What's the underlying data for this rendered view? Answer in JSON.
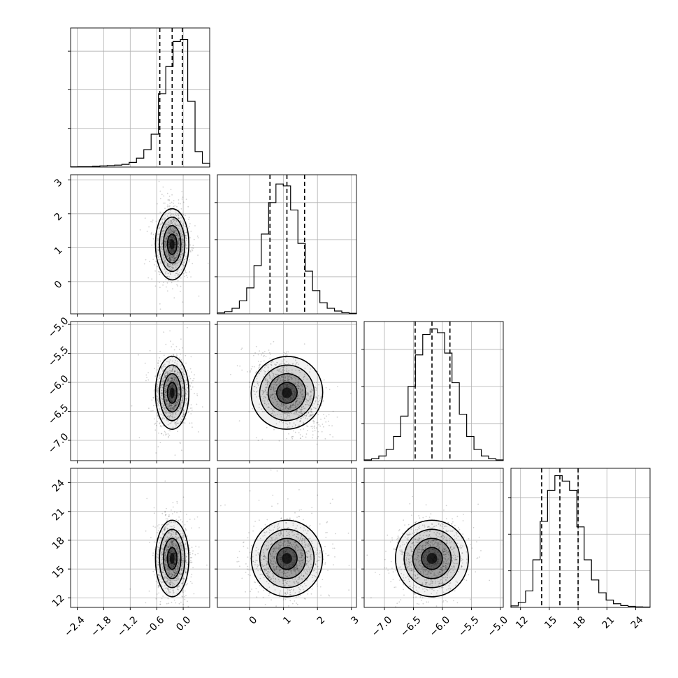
{
  "chart_data": {
    "type": "corner",
    "n_params": 4,
    "grid": true,
    "params": [
      {
        "range": [
          -2.55,
          0.6
        ],
        "ticks": [
          -2.4,
          -1.8,
          -1.2,
          -0.6,
          0.0
        ],
        "tick_labels": [
          "−2.4",
          "−1.8",
          "−1.2",
          "−0.6",
          "0.0"
        ],
        "quantiles": [
          -0.53,
          -0.25,
          -0.02
        ],
        "hist_counts": [
          1,
          2,
          2,
          4,
          6,
          8,
          10,
          14,
          24,
          46,
          90,
          170,
          380,
          520,
          650,
          660,
          340,
          80,
          20
        ],
        "hist_max": 720,
        "hist_ticks": [
          200,
          400,
          600
        ],
        "center": -0.25,
        "spread": 0.18
      },
      {
        "range": [
          -0.95,
          3.15
        ],
        "ticks": [
          0,
          1,
          2,
          3
        ],
        "tick_labels": [
          "0",
          "1",
          "2",
          "3"
        ],
        "quantiles": [
          0.6,
          1.1,
          1.62
        ],
        "hist_counts": [
          5,
          12,
          30,
          70,
          140,
          260,
          430,
          600,
          700,
          690,
          560,
          380,
          230,
          125,
          60,
          30,
          15,
          6,
          3
        ],
        "hist_max": 750,
        "hist_ticks": [
          200,
          400,
          600
        ],
        "center": 1.1,
        "spread": 0.5
      },
      {
        "range": [
          -7.35,
          -4.95
        ],
        "ticks": [
          -7.0,
          -6.5,
          -6.0,
          -5.5,
          -5.0
        ],
        "tick_labels": [
          "−7.0",
          "−6.5",
          "−6.0",
          "−5.5",
          "−5.0"
        ],
        "quantiles": [
          -6.47,
          -6.18,
          -5.87
        ],
        "hist_counts": [
          4,
          10,
          25,
          60,
          130,
          240,
          400,
          570,
          680,
          710,
          690,
          580,
          420,
          250,
          130,
          60,
          25,
          10,
          4
        ],
        "hist_max": 750,
        "hist_ticks": [
          200,
          400,
          600
        ],
        "center": -6.18,
        "spread": 0.3
      },
      {
        "range": [
          11.0,
          25.5
        ],
        "ticks": [
          12,
          15,
          18,
          21,
          24
        ],
        "tick_labels": [
          "12",
          "15",
          "18",
          "21",
          "24"
        ],
        "quantiles": [
          14.2,
          16.1,
          18.0
        ],
        "hist_counts": [
          8,
          28,
          90,
          260,
          470,
          640,
          720,
          690,
          640,
          440,
          260,
          150,
          80,
          40,
          20,
          10,
          6,
          3,
          2
        ],
        "hist_max": 760,
        "hist_ticks": [
          200,
          400,
          600
        ],
        "center": 16.1,
        "spread": 1.9
      }
    ],
    "contour_levels": [
      "0.5 sigma",
      "1 sigma",
      "1.5 sigma",
      "2 sigma"
    ]
  }
}
